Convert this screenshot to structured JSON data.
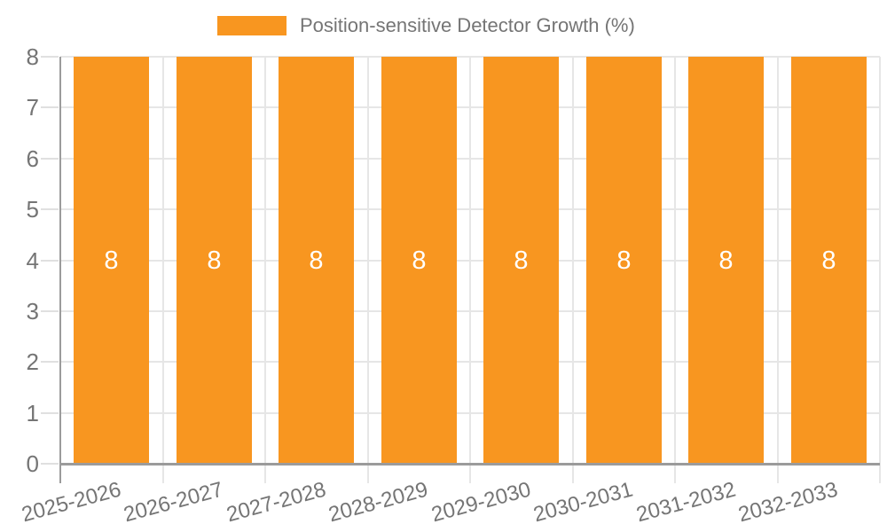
{
  "chart_data": {
    "type": "bar",
    "title": "",
    "legend": {
      "label": "Position-sensitive Detector Growth (%)",
      "position": "top"
    },
    "categories": [
      "2025-2026",
      "2026-2027",
      "2027-2028",
      "2028-2029",
      "2029-2030",
      "2030-2031",
      "2031-2032",
      "2032-2033"
    ],
    "series": [
      {
        "name": "Position-sensitive Detector Growth (%)",
        "values": [
          8,
          8,
          8,
          8,
          8,
          8,
          8,
          8
        ]
      }
    ],
    "bar_value_labels": [
      "8",
      "8",
      "8",
      "8",
      "8",
      "8",
      "8",
      "8"
    ],
    "xlabel": "",
    "ylabel": "",
    "ylim": [
      0,
      8
    ],
    "yticks": [
      0,
      1,
      2,
      3,
      4,
      5,
      6,
      7,
      8
    ],
    "grid": true,
    "colors": {
      "bar": "#f89620",
      "bar_label_text": "#ffffff",
      "axis_line": "#9b9b9b",
      "gridline": "#e6e6e6",
      "tick": "#e0e0e0",
      "label_text": "#757575"
    }
  }
}
